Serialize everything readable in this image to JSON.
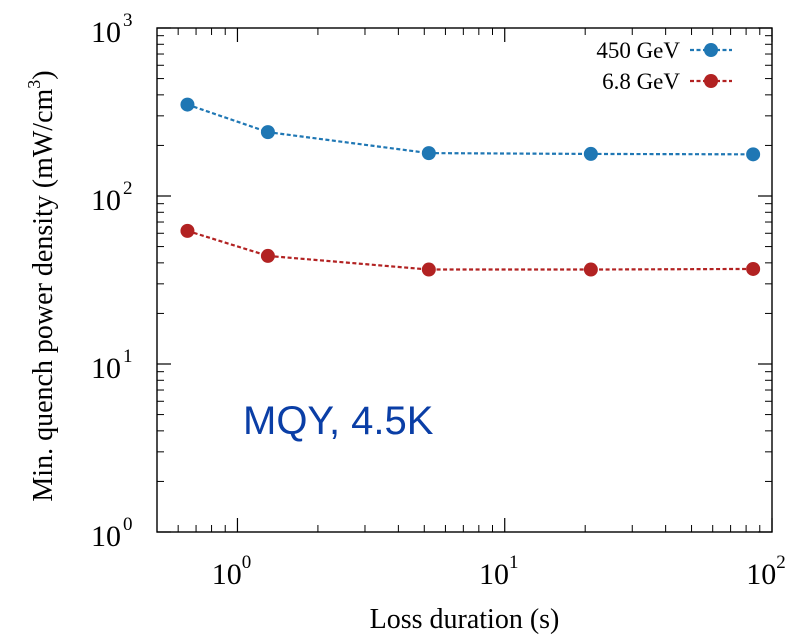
{
  "chart_data": {
    "type": "line",
    "xlabel": "Loss duration (s)",
    "ylabel_prefix": "Min. quench power density (mW/cm",
    "ylabel_exp": "3",
    "ylabel_suffix": ")",
    "x_scale": "log",
    "y_scale": "log",
    "xlim": [
      0.5,
      100
    ],
    "ylim": [
      1,
      1000
    ],
    "x_ticks": [
      {
        "value": 1,
        "base": "10",
        "exp": "0"
      },
      {
        "value": 10,
        "base": "10",
        "exp": "1"
      },
      {
        "value": 100,
        "base": "10",
        "exp": "2"
      }
    ],
    "y_ticks": [
      {
        "value": 1,
        "base": "10",
        "exp": "0"
      },
      {
        "value": 10,
        "base": "10",
        "exp": "1"
      },
      {
        "value": 100,
        "base": "10",
        "exp": "2"
      },
      {
        "value": 1000,
        "base": "10",
        "exp": "3"
      }
    ],
    "grid": false,
    "legend_position": "top-right",
    "annotation": "MQY, 4.5K",
    "series": [
      {
        "name": "450 GeV",
        "color": "#1f77b4",
        "x": [
          0.65,
          1.3,
          5.2,
          21,
          85
        ],
        "y": [
          350,
          240,
          180,
          178,
          177
        ]
      },
      {
        "name": "6.8 GeV",
        "color": "#b22222",
        "x": [
          0.65,
          1.3,
          5.2,
          21,
          85
        ],
        "y": [
          62,
          44,
          36.5,
          36.5,
          36.8
        ]
      }
    ]
  }
}
